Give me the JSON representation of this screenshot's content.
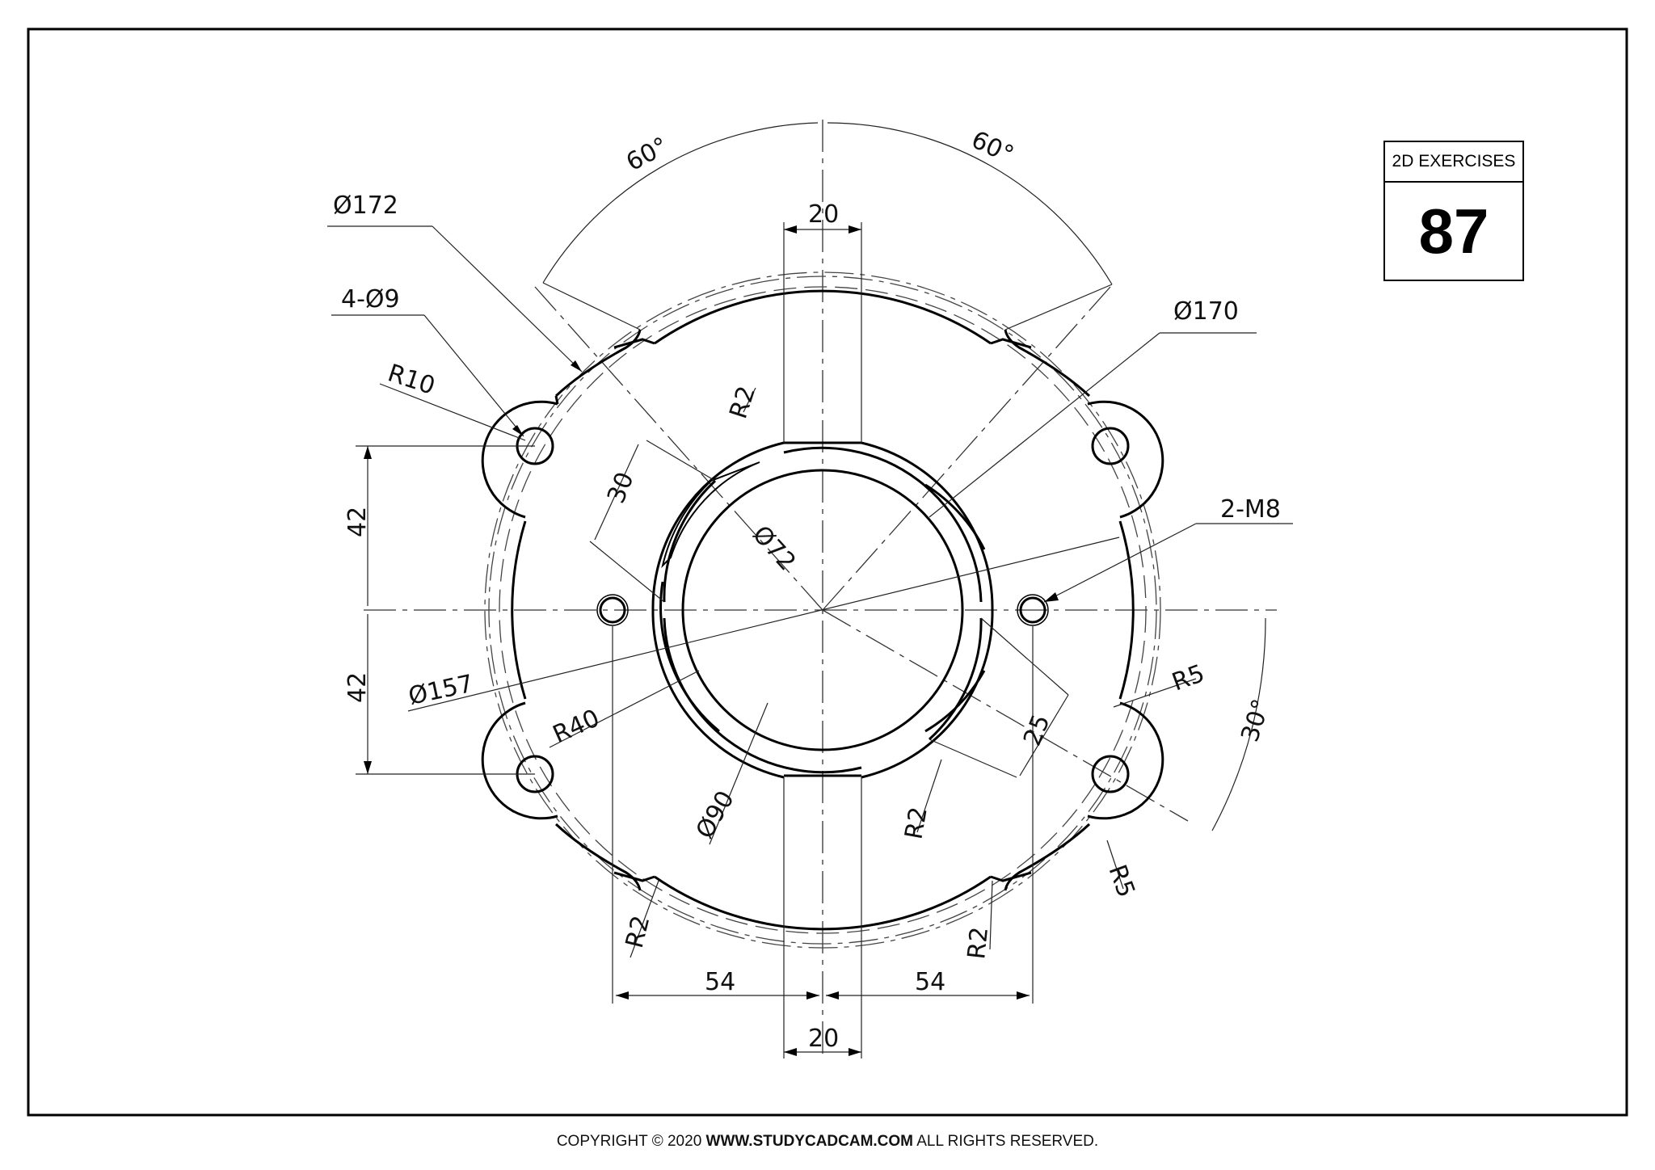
{
  "badge": {
    "label": "2D EXERCISES",
    "number": "87"
  },
  "footer": {
    "prefix": "COPYRIGHT © 2020",
    "site": "WWW.STUDYCADCAM.COM",
    "suffix": "ALL RIGHTS RESERVED."
  },
  "dimensions": {
    "dia172": "Ø172",
    "holes": "4-Ø9",
    "r10": "R10",
    "angle_left": "60°",
    "angle_right": "60°",
    "top_width": "20",
    "dia170": "Ø170",
    "r2_top": "R2",
    "slot_30": "30",
    "dia72": "Ø72",
    "m8": "2-M8",
    "h42_top": "42",
    "h42_bottom": "42",
    "dia157": "Ø157",
    "r40": "R40",
    "r5_right": "R5",
    "angle_30": "30°",
    "slot_25": "25",
    "dia90": "Ø90",
    "r2_center": "R2",
    "r5_lower": "R5",
    "r2_bottom_left": "R2",
    "r2_bottom_right": "R2",
    "w54_left": "54",
    "w54_right": "54",
    "bottom_width": "20"
  },
  "colors": {
    "line": "#000000",
    "text": "#111111"
  }
}
